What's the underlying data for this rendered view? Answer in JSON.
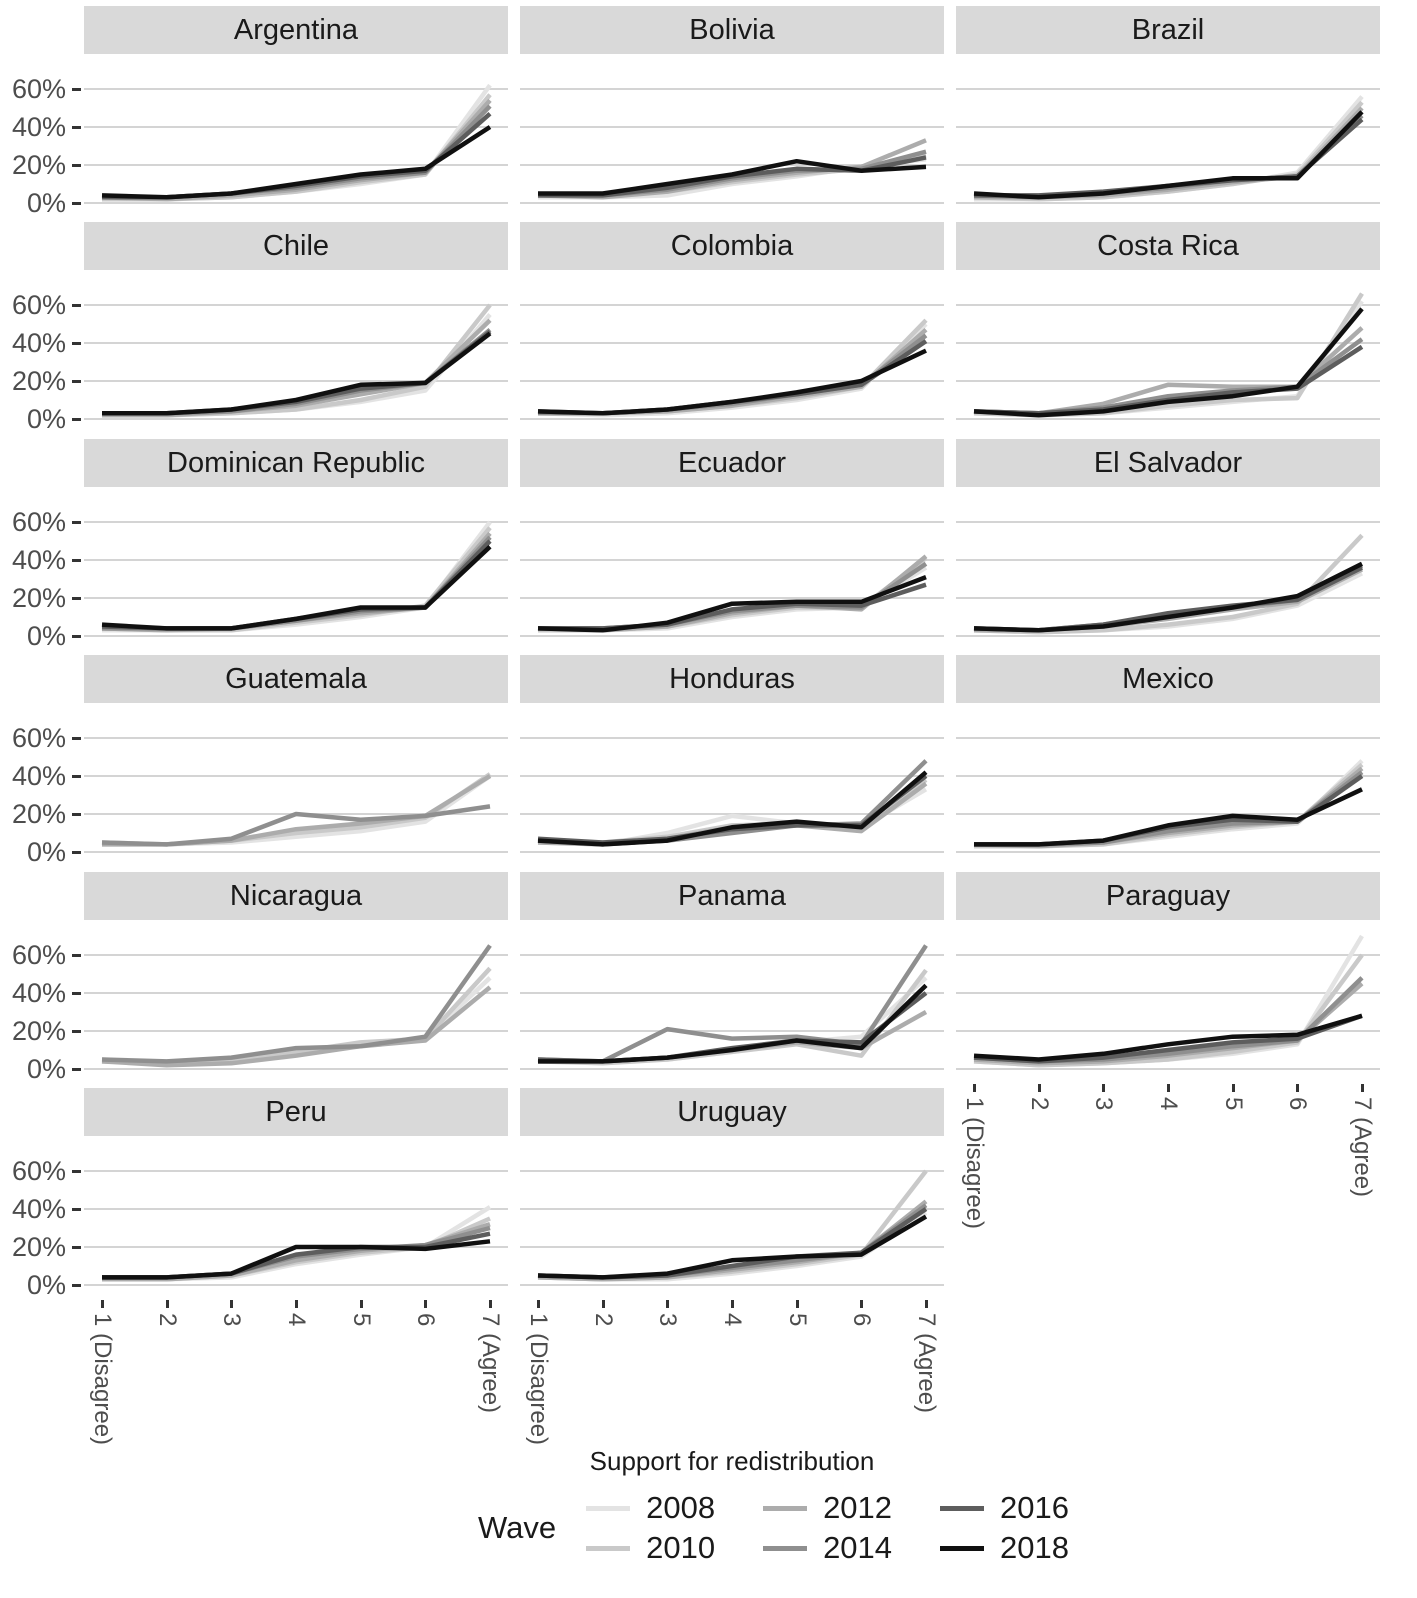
{
  "chart_data": {
    "type": "line",
    "xlabel": "Support for redistribution",
    "legend_title": "Wave",
    "x_categories": [
      "1 (Disagree)",
      "2",
      "3",
      "4",
      "5",
      "6",
      "7 (Agree)"
    ],
    "y_ticks": [
      "0%",
      "20%",
      "40%",
      "60%"
    ],
    "y_tick_values": [
      0,
      20,
      40,
      60
    ],
    "ylim": [
      -6,
      78
    ],
    "grid": "horizontal-only",
    "legend_position": "bottom",
    "waves": [
      {
        "name": "2008",
        "color": "#e3e3e3"
      },
      {
        "name": "2010",
        "color": "#c9c9c9"
      },
      {
        "name": "2012",
        "color": "#acacac"
      },
      {
        "name": "2014",
        "color": "#8f8f8f"
      },
      {
        "name": "2016",
        "color": "#5d5d5d"
      },
      {
        "name": "2018",
        "color": "#101010"
      }
    ],
    "facets": [
      {
        "country": "Argentina",
        "series": {
          "2008": [
            2,
            2,
            3,
            6,
            10,
            15,
            62
          ],
          "2010": [
            2,
            2,
            3,
            6,
            11,
            15,
            57
          ],
          "2012": [
            3,
            2,
            4,
            7,
            12,
            16,
            54
          ],
          "2014": [
            3,
            3,
            5,
            8,
            13,
            16,
            51
          ],
          "2016": [
            3,
            3,
            5,
            9,
            14,
            17,
            47
          ],
          "2018": [
            4,
            3,
            5,
            10,
            15,
            18,
            40
          ]
        }
      },
      {
        "country": "Bolivia",
        "series": {
          "2008": [
            3,
            3,
            4,
            10,
            14,
            19,
            23
          ],
          "2010": [
            4,
            4,
            6,
            11,
            15,
            18,
            25
          ],
          "2012": [
            4,
            3,
            6,
            12,
            16,
            19,
            33
          ],
          "2014": [
            4,
            4,
            7,
            13,
            17,
            18,
            27
          ],
          "2016": [
            4,
            4,
            8,
            14,
            18,
            17,
            24
          ],
          "2018": [
            5,
            5,
            10,
            15,
            22,
            17,
            19
          ]
        }
      },
      {
        "country": "Brazil",
        "series": {
          "2008": [
            2,
            2,
            3,
            6,
            10,
            16,
            56
          ],
          "2010": [
            3,
            2,
            3,
            6,
            10,
            15,
            53
          ],
          "2012": [
            3,
            3,
            4,
            7,
            11,
            14,
            50
          ],
          "2014": [
            4,
            3,
            5,
            8,
            12,
            14,
            46
          ],
          "2016": [
            4,
            4,
            6,
            9,
            12,
            14,
            44
          ],
          "2018": [
            5,
            3,
            5,
            9,
            13,
            13,
            48
          ]
        }
      },
      {
        "country": "Chile",
        "series": {
          "2008": [
            2,
            2,
            3,
            5,
            9,
            15,
            55
          ],
          "2010": [
            2,
            2,
            3,
            5,
            10,
            17,
            60
          ],
          "2012": [
            2,
            2,
            4,
            7,
            13,
            19,
            52
          ],
          "2014": [
            3,
            3,
            4,
            8,
            15,
            19,
            47
          ],
          "2016": [
            3,
            3,
            5,
            9,
            16,
            19,
            46
          ],
          "2018": [
            3,
            3,
            5,
            10,
            18,
            19,
            45
          ]
        }
      },
      {
        "country": "Colombia",
        "series": {
          "2008": [
            3,
            2,
            3,
            6,
            10,
            16,
            50
          ],
          "2010": [
            3,
            3,
            4,
            7,
            11,
            17,
            52
          ],
          "2012": [
            3,
            3,
            4,
            7,
            12,
            17,
            47
          ],
          "2014": [
            3,
            3,
            5,
            8,
            13,
            18,
            44
          ],
          "2016": [
            4,
            3,
            5,
            9,
            13,
            18,
            41
          ],
          "2018": [
            4,
            3,
            5,
            9,
            14,
            20,
            36
          ]
        }
      },
      {
        "country": "Costa Rica",
        "series": {
          "2008": [
            3,
            2,
            3,
            6,
            9,
            12,
            62
          ],
          "2010": [
            3,
            2,
            3,
            7,
            10,
            11,
            66
          ],
          "2012": [
            4,
            3,
            8,
            18,
            17,
            17,
            48
          ],
          "2014": [
            4,
            3,
            6,
            12,
            15,
            17,
            42
          ],
          "2016": [
            4,
            3,
            5,
            10,
            14,
            16,
            38
          ],
          "2018": [
            4,
            2,
            4,
            9,
            12,
            17,
            58
          ]
        }
      },
      {
        "country": "Dominican Republic",
        "series": {
          "2008": [
            3,
            3,
            3,
            6,
            10,
            15,
            60
          ],
          "2010": [
            4,
            3,
            3,
            7,
            11,
            16,
            57
          ],
          "2012": [
            4,
            3,
            4,
            8,
            12,
            15,
            54
          ],
          "2014": [
            4,
            4,
            4,
            8,
            13,
            15,
            52
          ],
          "2016": [
            5,
            4,
            4,
            9,
            14,
            15,
            50
          ],
          "2018": [
            6,
            4,
            4,
            9,
            15,
            15,
            47
          ]
        }
      },
      {
        "country": "Ecuador",
        "series": {
          "2008": [
            3,
            3,
            4,
            10,
            14,
            15,
            36
          ],
          "2010": [
            3,
            3,
            5,
            11,
            15,
            15,
            41
          ],
          "2012": [
            4,
            3,
            5,
            12,
            16,
            14,
            42
          ],
          "2014": [
            4,
            4,
            6,
            13,
            16,
            15,
            38
          ],
          "2016": [
            4,
            4,
            6,
            14,
            17,
            16,
            27
          ],
          "2018": [
            4,
            3,
            7,
            17,
            18,
            18,
            31
          ]
        }
      },
      {
        "country": "El Salvador",
        "series": {
          "2008": [
            3,
            2,
            3,
            5,
            9,
            16,
            33
          ],
          "2010": [
            3,
            2,
            3,
            6,
            10,
            17,
            53
          ],
          "2012": [
            3,
            3,
            5,
            9,
            14,
            18,
            35
          ],
          "2014": [
            4,
            3,
            6,
            11,
            15,
            19,
            37
          ],
          "2016": [
            4,
            3,
            6,
            12,
            16,
            19,
            36
          ],
          "2018": [
            4,
            3,
            5,
            10,
            15,
            21,
            38
          ]
        }
      },
      {
        "country": "Guatemala",
        "series": {
          "2008": [
            4,
            4,
            5,
            8,
            11,
            16,
            40
          ],
          "2010": [
            5,
            4,
            6,
            10,
            13,
            18,
            41
          ],
          "2012": [
            4,
            4,
            6,
            12,
            15,
            19,
            40
          ],
          "2014": [
            5,
            4,
            7,
            20,
            17,
            19,
            24
          ]
        }
      },
      {
        "country": "Honduras",
        "series": {
          "2008": [
            5,
            4,
            10,
            19,
            15,
            13,
            33
          ],
          "2010": [
            6,
            5,
            8,
            14,
            15,
            12,
            38
          ],
          "2012": [
            5,
            4,
            7,
            13,
            14,
            11,
            36
          ],
          "2014": [
            6,
            4,
            6,
            10,
            14,
            15,
            48
          ],
          "2016": [
            7,
            5,
            7,
            12,
            14,
            14,
            40
          ],
          "2018": [
            6,
            4,
            6,
            13,
            16,
            13,
            42
          ]
        }
      },
      {
        "country": "Mexico",
        "series": {
          "2008": [
            3,
            3,
            4,
            8,
            12,
            15,
            48
          ],
          "2010": [
            3,
            3,
            4,
            9,
            13,
            16,
            46
          ],
          "2012": [
            4,
            3,
            5,
            10,
            14,
            16,
            44
          ],
          "2014": [
            4,
            4,
            5,
            11,
            15,
            16,
            42
          ],
          "2016": [
            4,
            4,
            6,
            13,
            17,
            16,
            40
          ],
          "2018": [
            4,
            4,
            6,
            14,
            19,
            17,
            33
          ]
        }
      },
      {
        "country": "Nicaragua",
        "series": {
          "2008": [
            5,
            3,
            4,
            8,
            13,
            16,
            48
          ],
          "2010": [
            4,
            3,
            4,
            9,
            14,
            16,
            53
          ],
          "2012": [
            4,
            2,
            3,
            7,
            12,
            15,
            43
          ],
          "2014": [
            5,
            4,
            6,
            11,
            12,
            17,
            65
          ]
        }
      },
      {
        "country": "Panama",
        "series": {
          "2008": [
            4,
            4,
            5,
            9,
            14,
            17,
            48
          ],
          "2010": [
            4,
            3,
            5,
            9,
            13,
            7,
            52
          ],
          "2012": [
            5,
            4,
            6,
            10,
            14,
            11,
            30
          ],
          "2014": [
            4,
            4,
            21,
            16,
            17,
            13,
            65
          ],
          "2016": [
            5,
            4,
            6,
            11,
            15,
            14,
            40
          ],
          "2018": [
            4,
            4,
            6,
            10,
            15,
            11,
            44
          ]
        }
      },
      {
        "country": "Paraguay",
        "series": {
          "2008": [
            4,
            2,
            3,
            5,
            8,
            13,
            70
          ],
          "2010": [
            4,
            2,
            3,
            5,
            9,
            14,
            60
          ],
          "2012": [
            5,
            3,
            4,
            7,
            11,
            15,
            45
          ],
          "2014": [
            6,
            4,
            5,
            8,
            12,
            15,
            48
          ],
          "2016": [
            6,
            4,
            6,
            10,
            14,
            16,
            28
          ],
          "2018": [
            7,
            5,
            8,
            13,
            17,
            18,
            28
          ]
        }
      },
      {
        "country": "Peru",
        "series": {
          "2008": [
            3,
            3,
            4,
            11,
            16,
            20,
            41
          ],
          "2010": [
            3,
            3,
            5,
            12,
            17,
            20,
            35
          ],
          "2012": [
            3,
            3,
            5,
            13,
            18,
            21,
            32
          ],
          "2014": [
            4,
            4,
            6,
            15,
            19,
            21,
            30
          ],
          "2016": [
            4,
            4,
            6,
            16,
            20,
            20,
            27
          ],
          "2018": [
            4,
            4,
            6,
            20,
            20,
            19,
            23
          ]
        }
      },
      {
        "country": "Uruguay",
        "series": {
          "2008": [
            4,
            3,
            3,
            6,
            10,
            15,
            38
          ],
          "2010": [
            4,
            3,
            4,
            7,
            11,
            16,
            60
          ],
          "2012": [
            4,
            3,
            4,
            8,
            12,
            17,
            44
          ],
          "2014": [
            5,
            4,
            5,
            9,
            13,
            17,
            42
          ],
          "2016": [
            5,
            4,
            5,
            10,
            15,
            17,
            40
          ],
          "2018": [
            5,
            4,
            6,
            13,
            15,
            16,
            36
          ]
        }
      }
    ]
  }
}
